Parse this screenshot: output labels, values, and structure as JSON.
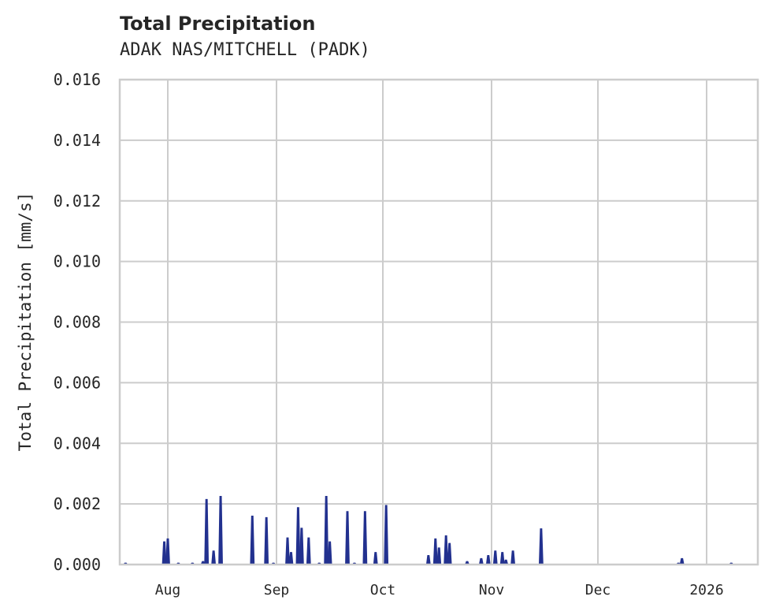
{
  "header": {
    "title": "Total Precipitation",
    "subtitle": "ADAK NAS/MITCHELL (PADK)"
  },
  "axes": {
    "ylabel": "Total Precipitation [mm/s]",
    "yticks": [
      "0.000",
      "0.002",
      "0.004",
      "0.006",
      "0.008",
      "0.010",
      "0.012",
      "0.014",
      "0.016"
    ],
    "xticks": [
      "Aug",
      "Sep",
      "Oct",
      "Nov",
      "Dec",
      "2026"
    ]
  },
  "colors": {
    "series": "#22318f",
    "grid": "#cccccc",
    "text": "#262626"
  },
  "chart_data": {
    "type": "area",
    "title": "Total Precipitation",
    "subtitle": "ADAK NAS/MITCHELL (PADK)",
    "xlabel": "",
    "ylabel": "Total Precipitation [mm/s]",
    "ylim": [
      0,
      0.016
    ],
    "yticks": [
      0,
      0.002,
      0.004,
      0.006,
      0.008,
      0.01,
      0.012,
      0.014,
      0.016
    ],
    "xticks": [
      "Aug",
      "Sep",
      "Oct",
      "Nov",
      "Dec",
      "2026"
    ],
    "grid": true,
    "legend": null,
    "series": [
      {
        "name": "Total Precipitation",
        "color": "#22318f",
        "points": [
          {
            "date": "2025-07-20",
            "value": 5e-05
          },
          {
            "date": "2025-07-31",
            "value": 0.00075
          },
          {
            "date": "2025-08-01",
            "value": 0.00085
          },
          {
            "date": "2025-08-04",
            "value": 5e-05
          },
          {
            "date": "2025-08-08",
            "value": 5e-05
          },
          {
            "date": "2025-08-11",
            "value": 0.0001
          },
          {
            "date": "2025-08-12",
            "value": 0.00215
          },
          {
            "date": "2025-08-14",
            "value": 0.00045
          },
          {
            "date": "2025-08-16",
            "value": 0.00225
          },
          {
            "date": "2025-08-25",
            "value": 0.0016
          },
          {
            "date": "2025-08-29",
            "value": 0.00155
          },
          {
            "date": "2025-08-31",
            "value": 5e-05
          },
          {
            "date": "2025-09-04",
            "value": 0.00088
          },
          {
            "date": "2025-09-05",
            "value": 0.0004
          },
          {
            "date": "2025-09-07",
            "value": 0.00188
          },
          {
            "date": "2025-09-08",
            "value": 0.0012
          },
          {
            "date": "2025-09-10",
            "value": 0.00088
          },
          {
            "date": "2025-09-13",
            "value": 5e-05
          },
          {
            "date": "2025-09-15",
            "value": 0.00225
          },
          {
            "date": "2025-09-16",
            "value": 0.00075
          },
          {
            "date": "2025-09-21",
            "value": 0.00175
          },
          {
            "date": "2025-09-23",
            "value": 5e-05
          },
          {
            "date": "2025-09-26",
            "value": 0.00175
          },
          {
            "date": "2025-09-29",
            "value": 0.0004
          },
          {
            "date": "2025-10-02",
            "value": 0.00195
          },
          {
            "date": "2025-10-14",
            "value": 0.0003
          },
          {
            "date": "2025-10-16",
            "value": 0.00085
          },
          {
            "date": "2025-10-17",
            "value": 0.00055
          },
          {
            "date": "2025-10-19",
            "value": 0.00095
          },
          {
            "date": "2025-10-20",
            "value": 0.0007
          },
          {
            "date": "2025-10-25",
            "value": 0.0001
          },
          {
            "date": "2025-10-29",
            "value": 0.0002
          },
          {
            "date": "2025-10-31",
            "value": 0.0003
          },
          {
            "date": "2025-11-02",
            "value": 0.00045
          },
          {
            "date": "2025-11-04",
            "value": 0.0004
          },
          {
            "date": "2025-11-05",
            "value": 0.00015
          },
          {
            "date": "2025-11-07",
            "value": 0.00045
          },
          {
            "date": "2025-11-15",
            "value": 0.00118
          },
          {
            "date": "2025-12-24",
            "value": 5e-05
          },
          {
            "date": "2025-12-25",
            "value": 0.0002
          },
          {
            "date": "2026-01-08",
            "value": 5e-05
          }
        ]
      }
    ]
  }
}
